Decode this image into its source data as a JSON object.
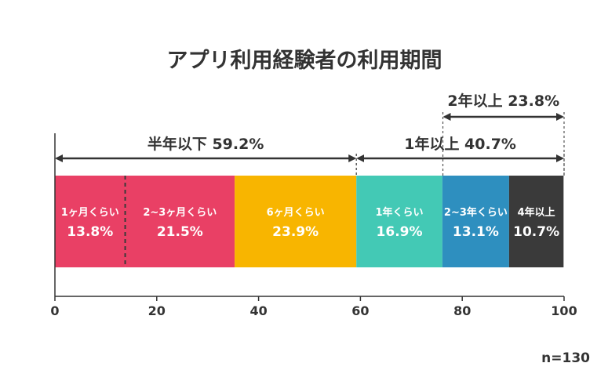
{
  "chart_data": {
    "type": "bar",
    "orientation": "horizontal-stacked",
    "title": "アプリ利用経験者の利用期間",
    "categories": [
      "1ヶ月くらい",
      "2~3ヶ月くらい",
      "6ヶ月くらい",
      "1年くらい",
      "2~3年くらい",
      "4年以上"
    ],
    "values": [
      13.8,
      21.5,
      23.9,
      16.9,
      13.1,
      10.7
    ],
    "value_labels": [
      "13.8%",
      "21.5%",
      "23.9%",
      "16.9%",
      "13.1%",
      "10.7%"
    ],
    "colors": [
      "#E94065",
      "#E94065",
      "#F8B500",
      "#43C9B5",
      "#2E8FBF",
      "#3A3A3A"
    ],
    "xlim": [
      0,
      100
    ],
    "xticks": [
      "0",
      "20",
      "40",
      "60",
      "80",
      "100"
    ],
    "annotations": [
      {
        "label": "半年以下 59.2%",
        "start": 0,
        "end": 59.2
      },
      {
        "label": "1年以上 40.7%",
        "start": 59.2,
        "end": 100
      },
      {
        "label": "2年以上 23.8%",
        "start": 76.2,
        "end": 100
      }
    ],
    "note": "n=130"
  }
}
